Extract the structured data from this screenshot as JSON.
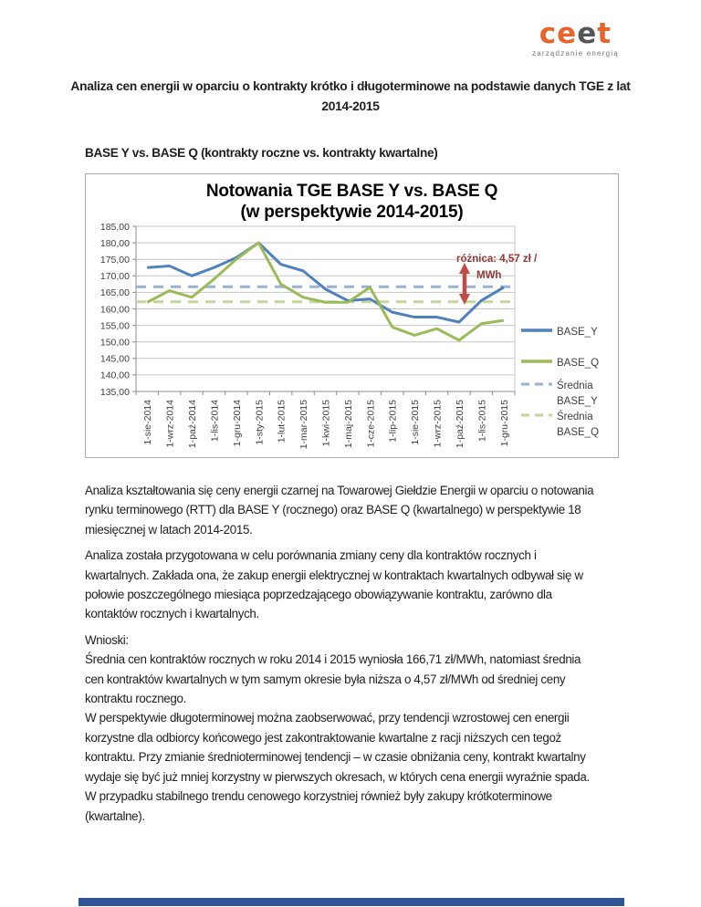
{
  "logo": {
    "letters": [
      {
        "ch": "c",
        "color": "#E8642D"
      },
      {
        "ch": "e",
        "color": "#E8642D"
      },
      {
        "ch": "e",
        "color": "#55565A"
      },
      {
        "ch": "t",
        "color": "#E8642D"
      }
    ],
    "tagline": "zarządzanie energią",
    "tagline_color": "#77787B"
  },
  "doc": {
    "title_line1": "Analiza cen energii w oparciu o kontrakty krótko i długoterminowe na podstawie danych TGE z lat",
    "title_line2": "2014-2015",
    "section_heading": "BASE Y vs. BASE Q (kontrakty roczne vs. kontrakty kwartalne)",
    "p1": [
      "Analiza kształtowania się ceny energii czarnej na Towarowej Giełdzie Energii w oparciu o notowania",
      "rynku terminowego (RTT) dla BASE Y (rocznego) oraz BASE Q (kwartalnego) w perspektywie 18",
      "miesięcznej w latach 2014-2015."
    ],
    "p2": [
      "Analiza została przygotowana w celu porównania zmiany ceny dla kontraktów rocznych i",
      "kwartalnych. Zakłada ona, że zakup energii elektrycznej w kontraktach kwartalnych odbywał się w",
      "połowie poszczególnego miesiąca poprzedzającego obowiązywanie kontraktu, zarówno dla",
      "kontaktów rocznych i kwartalnych."
    ],
    "p3": [
      "Wnioski:",
      "Średnia cen kontraktów rocznych w roku 2014 i 2015 wyniosła 166,71 zł/MWh, natomiast średnia",
      "cen kontraktów kwartalnych w tym samym okresie była niższa o 4,57 zł/MWh od średniej ceny",
      "kontraktu rocznego.",
      "W perspektywie długoterminowej można zaobserwować, przy tendencji wzrostowej cen energii",
      "korzystne dla odbiorcy końcowego jest zakontraktowanie kwartalne z racji niższych cen tegoż",
      "kontraktu. Przy zmianie średnioterminowej tendencji – w czasie obniżania ceny, kontrakt kwartalny",
      "wydaje się być już mniej korzystny w pierwszych okresach, w których cena energii wyraźnie spada.",
      "W przypadku stabilnego trendu cenowego korzystniej również były zakupy krótkoterminowe",
      "(kwartalne)."
    ]
  },
  "chart_data": {
    "type": "line",
    "title_line1": "Notowania TGE BASE Y vs. BASE Q",
    "title_line2": "(w perspektywie 2014-2015)",
    "categories": [
      "1-sie-2014",
      "1-wrz-2014",
      "1-paź-2014",
      "1-lis-2014",
      "1-gru-2014",
      "1-sty-2015",
      "1-lut-2015",
      "1-mar-2015",
      "1-kwi-2015",
      "1-maj-2015",
      "1-cze-2015",
      "1-lip-2015",
      "1-sie-2015",
      "1-wrz-2015",
      "1-paź-2015",
      "1-lis-2015",
      "1-gru-2015"
    ],
    "series": [
      {
        "name": "BASE_Y",
        "style": "solid",
        "color": "#4F81BD",
        "values": [
          172.5,
          173,
          170,
          172.5,
          175.5,
          180,
          173.5,
          171.5,
          166,
          162.5,
          163,
          159,
          157.5,
          157.5,
          156,
          162.5,
          166.5
        ]
      },
      {
        "name": "BASE_Q",
        "style": "solid",
        "color": "#9BBB59",
        "values": [
          162,
          165.5,
          163.5,
          169,
          175,
          180,
          167.5,
          163.5,
          162,
          162,
          166.5,
          154.5,
          152,
          154,
          150.5,
          155.5,
          156.5
        ]
      },
      {
        "name": "Średnia BASE_Y",
        "style": "dashed",
        "color": "#95B3D7",
        "value": 166.71
      },
      {
        "name": "Średnia BASE_Q",
        "style": "dashed",
        "color": "#C3D69B",
        "value": 162.14
      }
    ],
    "ylim": [
      135,
      185
    ],
    "ytick_step": 5,
    "ytick_labels": [
      "185,00",
      "180,00",
      "175,00",
      "170,00",
      "165,00",
      "160,00",
      "155,00",
      "150,00",
      "145,00",
      "140,00",
      "135,00"
    ],
    "grid": true,
    "legend_position": "right",
    "annotation": {
      "text_line1": "różnica: 4,57 zł /",
      "text_line2": "MWh",
      "color": "#953735",
      "arrow_color": "#BE4B48"
    }
  },
  "footer": {
    "bar_color": "#2F5597"
  }
}
